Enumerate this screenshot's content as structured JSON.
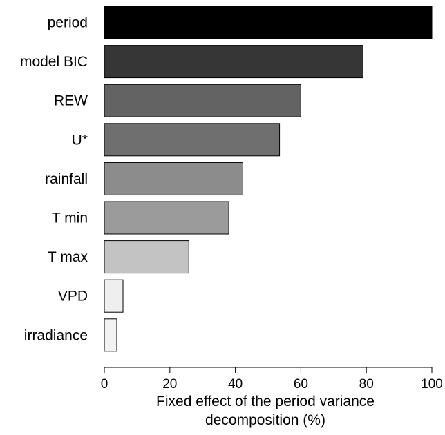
{
  "chart_data": {
    "type": "bar",
    "orientation": "horizontal",
    "categories": [
      "period",
      "model BIC",
      "REW",
      "U*",
      "rainfall",
      "T min",
      "T max",
      "VPD",
      "irradiance"
    ],
    "values": [
      100,
      79,
      60,
      53.5,
      42.3,
      38,
      25.8,
      5.7,
      3.8
    ],
    "bar_colors": [
      "#000000",
      "#363636",
      "#636363",
      "#6f6f6f",
      "#8c8c8c",
      "#9b9b9b",
      "#c3c3c3",
      "#efefef",
      "#f2f2f2"
    ],
    "xlabel_lines": [
      "Fixed  effect of the period variance",
      "decomposition (%)"
    ],
    "xticks": [
      0,
      20,
      40,
      60,
      80,
      100
    ],
    "xlim": [
      0,
      100
    ],
    "grid": false,
    "legend": "none"
  }
}
